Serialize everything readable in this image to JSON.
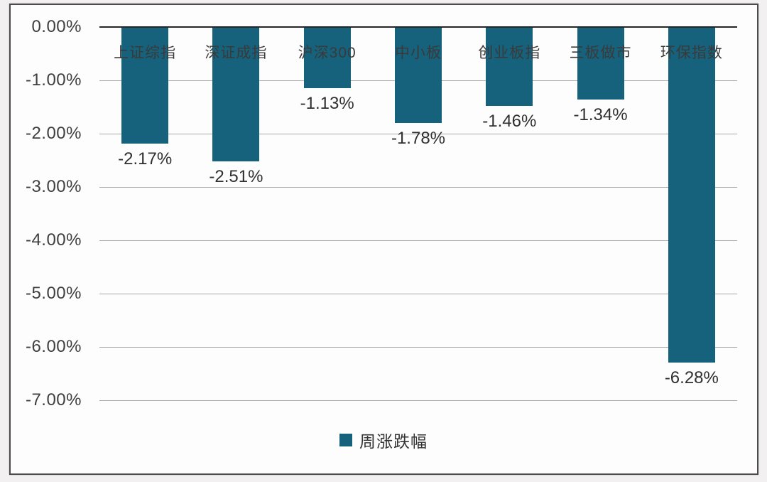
{
  "chart_data": {
    "type": "bar",
    "categories": [
      "上证综指",
      "深证成指",
      "沪深300",
      "中小板",
      "创业板指",
      "三板做市",
      "环保指数"
    ],
    "values": [
      -2.17,
      -2.51,
      -1.13,
      -1.78,
      -1.46,
      -1.34,
      -6.28
    ],
    "value_labels": [
      "-2.17%",
      "-2.51%",
      "-1.13%",
      "-1.78%",
      "-1.46%",
      "-1.34%",
      "-6.28%"
    ],
    "y_ticks": [
      "0.00%",
      "-1.00%",
      "-2.00%",
      "-3.00%",
      "-4.00%",
      "-5.00%",
      "-6.00%",
      "-7.00%"
    ],
    "ylim": [
      -7,
      0
    ],
    "grid": true,
    "legend_position": "bottom",
    "series_name": "周涨跌幅",
    "bar_color": "#16617b",
    "axis_line_color": "#262626"
  },
  "legend": {
    "label": "周涨跌幅"
  }
}
